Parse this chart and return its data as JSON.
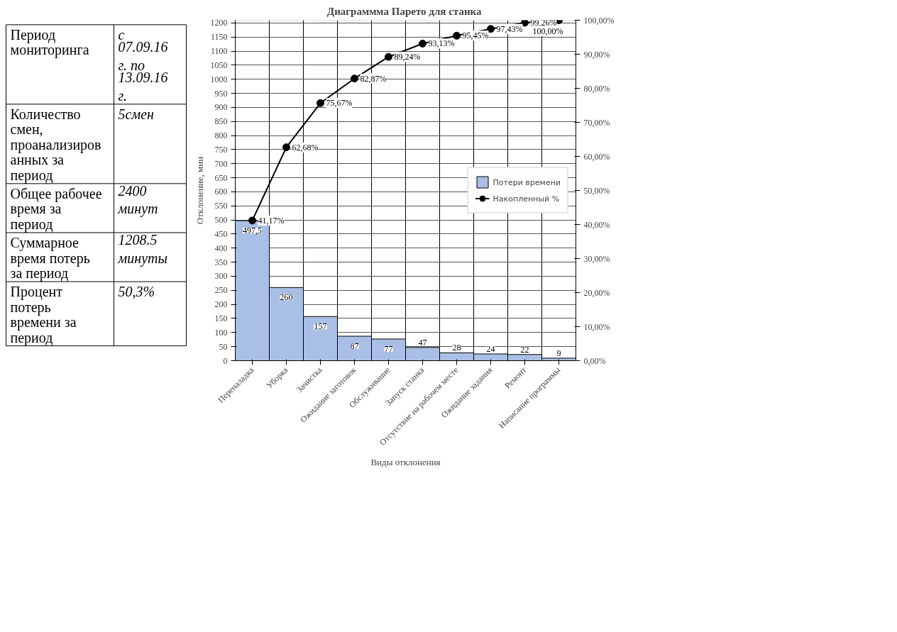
{
  "chart_data": [
    {
      "type": "other",
      "annotations": [
        "Период мониторинга",
        "с 07.09.16 г. по 13.09.16 г.",
        "Количество смен, проанализированных за период",
        "5смен",
        "Общее рабочее время за период",
        "2400 минут",
        "Суммарное время потерь за период",
        "1208.5 минуты",
        "Процент потерь времени за период",
        "50,3%"
      ]
    },
    {
      "type": "bar",
      "title": "Диаграммма Парето  для станка",
      "xlabel": "Виды отклонения",
      "ylabel": "Отклонение, мин",
      "categories": [
        "Переналадка",
        "Уборка",
        "Зачистка",
        "Ожидание заготовок",
        "Обслуживание",
        "Запуск станка",
        "Отсутствие на рабочем месте",
        "Ожидание задания",
        "Ремонт",
        "Написание программы"
      ],
      "series": [
        {
          "name": "Потери времени",
          "type": "bar",
          "color": "#a9bfe6",
          "values": [
            497.5,
            260,
            157,
            87,
            77,
            47,
            28,
            24,
            22,
            9
          ],
          "value_labels": [
            "497,5",
            "260",
            "157",
            "87",
            "77",
            "47",
            "28",
            "24",
            "22",
            "9"
          ]
        },
        {
          "name": "Накопленный %",
          "type": "line",
          "axis": "y2",
          "color": "#000000",
          "marker": "circle",
          "values": [
            41.17,
            62.68,
            75.67,
            82.87,
            89.24,
            93.13,
            95.45,
            97.43,
            99.26,
            100
          ],
          "value_labels": [
            "41,17%",
            "62,68%",
            "75,67%",
            "82,87%",
            "89,24%",
            "93,13%",
            "95,45%",
            "97,43%",
            "99,26%",
            "100,00%"
          ]
        }
      ],
      "ylim": [
        0,
        1210
      ],
      "yticks": [
        0,
        50,
        100,
        150,
        200,
        250,
        300,
        350,
        400,
        450,
        500,
        550,
        600,
        650,
        700,
        750,
        800,
        850,
        900,
        950,
        1000,
        1050,
        1100,
        1150,
        1200
      ],
      "y2lim": [
        0,
        100
      ],
      "y2ticks": [
        {
          "value": 0,
          "label": "0,00%"
        },
        {
          "value": 10,
          "label": "10,00%"
        },
        {
          "value": 20,
          "label": "20,00%"
        },
        {
          "value": 30,
          "label": "30,00%"
        },
        {
          "value": 40,
          "label": "40,00%"
        },
        {
          "value": 50,
          "label": "50,00%"
        },
        {
          "value": 60,
          "label": "60,00%"
        },
        {
          "value": 70,
          "label": "70,00%"
        },
        {
          "value": 80,
          "label": "80,00%"
        },
        {
          "value": 90,
          "label": "90,00%"
        },
        {
          "value": 100,
          "label": "100,00%"
        }
      ],
      "grid": true,
      "legend": "right"
    }
  ]
}
